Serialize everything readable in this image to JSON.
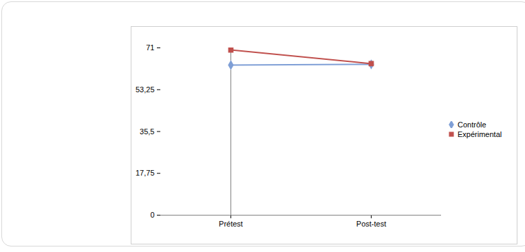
{
  "chart_data": {
    "type": "line",
    "categories": [
      "Prétest",
      "Post-test"
    ],
    "series": [
      {
        "name": "Contrôle",
        "color": "#7f9fd6",
        "marker": "diamond",
        "values": [
          63.7,
          64.0
        ]
      },
      {
        "name": "Expérimental",
        "color": "#c0504d",
        "marker": "square",
        "values": [
          70.1,
          64.3
        ]
      }
    ],
    "ylim": [
      0,
      71
    ],
    "yticks": [
      0,
      {
        "value": 17.75,
        "label": "17,75"
      },
      {
        "value": 35.5,
        "label": "35,5"
      },
      {
        "value": 53.25,
        "label": "53,25"
      },
      71
    ],
    "legend": "right",
    "grid": false
  }
}
